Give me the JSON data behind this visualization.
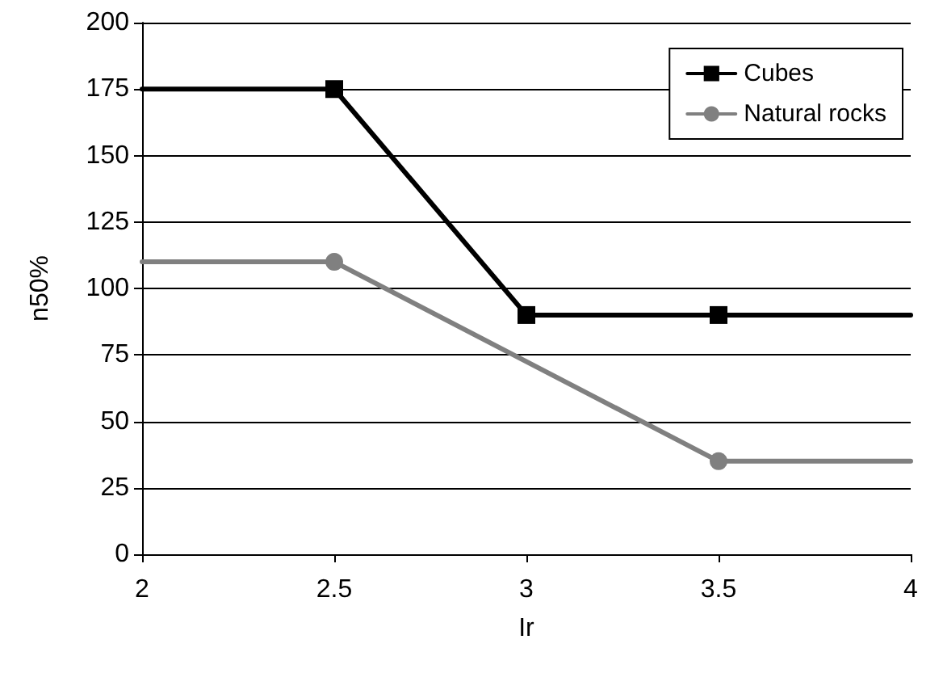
{
  "chart_data": {
    "type": "line",
    "xlabel": "Ir",
    "ylabel": "n50%",
    "xlim": [
      2,
      4
    ],
    "xticks": [
      2,
      2.5,
      3,
      3.5,
      4
    ],
    "ylim": [
      0,
      200
    ],
    "yticks": [
      0,
      25,
      50,
      75,
      100,
      125,
      150,
      175,
      200
    ],
    "grid": "y",
    "legend": "top right",
    "line_style": "solid",
    "series": [
      {
        "name": "Cubes",
        "color": "#000000",
        "marker": "square",
        "x": [
          2,
          2.5,
          3,
          3.5,
          4
        ],
        "values": [
          175,
          175,
          90,
          90,
          90
        ]
      },
      {
        "name": "Natural rocks",
        "color": "#808080",
        "marker": "circle",
        "x": [
          2,
          2.5,
          3.5,
          4
        ],
        "values": [
          110,
          110,
          35,
          35
        ]
      }
    ]
  }
}
